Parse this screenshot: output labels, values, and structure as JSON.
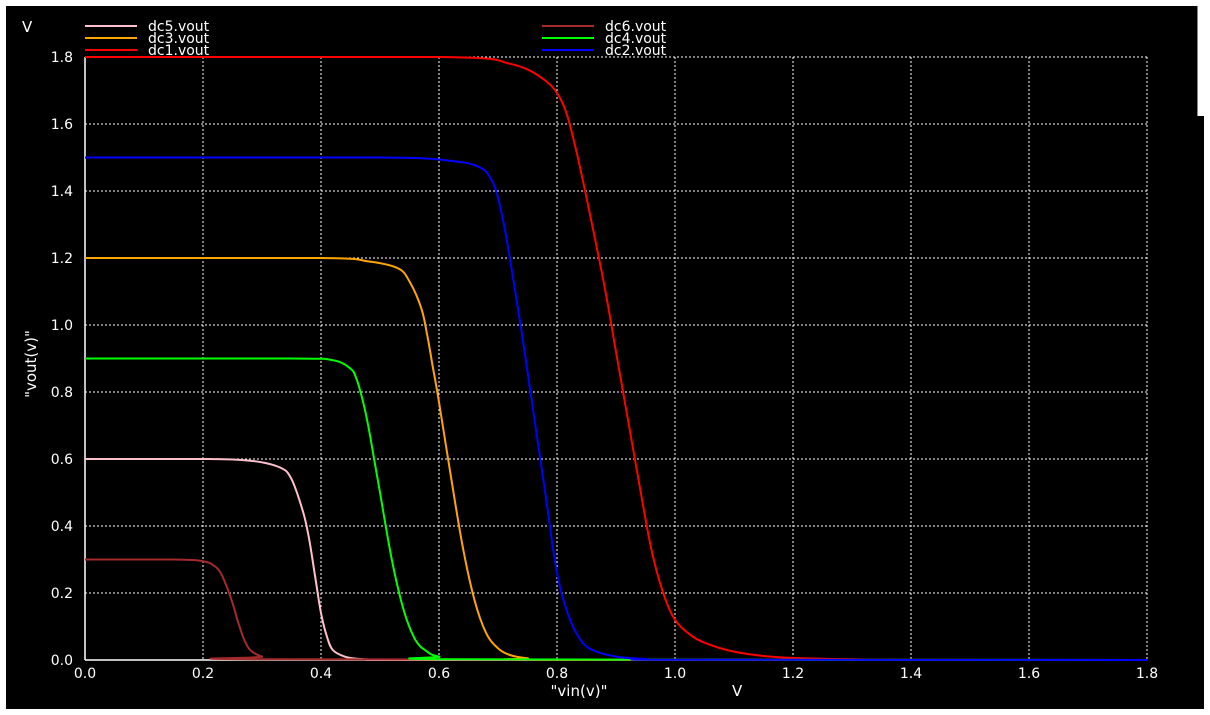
{
  "chart_data": {
    "type": "line",
    "title": "",
    "xlabel": "\"vin(v)\"",
    "xunit": "V",
    "ylabel": "\"vout(v)\"",
    "yunit": "V",
    "xlim": [
      0.0,
      1.8
    ],
    "ylim": [
      0.0,
      1.8
    ],
    "xticks": [
      "0.0",
      "0.2",
      "0.4",
      "0.6",
      "0.8",
      "1.0",
      "1.2",
      "1.4",
      "1.6",
      "1.8"
    ],
    "yticks": [
      "0.0",
      "0.2",
      "0.4",
      "0.6",
      "0.8",
      "1.0",
      "1.2",
      "1.4",
      "1.6",
      "1.8"
    ],
    "grid": true,
    "legend_position": "top",
    "background": "#000000",
    "axis_color": "#ffffff",
    "series": [
      {
        "name": "dc5.vout",
        "color": "#ffc0cb",
        "x": [
          0.0,
          0.2,
          0.28,
          0.33,
          0.35,
          0.37,
          0.38,
          0.39,
          0.4,
          0.41,
          0.42,
          0.44,
          0.46,
          0.5,
          0.6,
          1.8
        ],
        "y": [
          0.6,
          0.6,
          0.595,
          0.575,
          0.54,
          0.44,
          0.36,
          0.25,
          0.14,
          0.07,
          0.03,
          0.01,
          0.004,
          0.001,
          0.0,
          0.0
        ]
      },
      {
        "name": "dc3.vout",
        "color": "#ffa500",
        "x": [
          0.0,
          0.4,
          0.48,
          0.53,
          0.55,
          0.57,
          0.58,
          0.59,
          0.6,
          0.62,
          0.64,
          0.66,
          0.68,
          0.7,
          0.72,
          0.75,
          0.8,
          1.8
        ],
        "y": [
          1.2,
          1.2,
          1.19,
          1.17,
          1.13,
          1.05,
          0.97,
          0.87,
          0.77,
          0.55,
          0.34,
          0.18,
          0.08,
          0.035,
          0.015,
          0.005,
          0.001,
          0.0
        ]
      },
      {
        "name": "dc1.vout",
        "color": "#ff0000",
        "x": [
          0.0,
          0.6,
          0.72,
          0.78,
          0.81,
          0.83,
          0.85,
          0.88,
          0.9,
          0.92,
          0.94,
          0.96,
          0.98,
          1.0,
          1.03,
          1.06,
          1.1,
          1.15,
          1.2,
          1.3,
          1.4,
          1.8
        ],
        "y": [
          1.8,
          1.8,
          1.78,
          1.73,
          1.66,
          1.54,
          1.38,
          1.12,
          0.92,
          0.72,
          0.52,
          0.33,
          0.2,
          0.12,
          0.07,
          0.045,
          0.025,
          0.012,
          0.006,
          0.002,
          0.0,
          0.0
        ]
      },
      {
        "name": "dc6.vout",
        "color": "#a52a2a",
        "x": [
          0.0,
          0.15,
          0.2,
          0.22,
          0.23,
          0.24,
          0.25,
          0.26,
          0.27,
          0.28,
          0.3,
          0.33,
          1.8
        ],
        "y": [
          0.3,
          0.3,
          0.295,
          0.28,
          0.26,
          0.22,
          0.17,
          0.11,
          0.06,
          0.03,
          0.01,
          0.002,
          0.0
        ]
      },
      {
        "name": "dc4.vout",
        "color": "#00ff00",
        "x": [
          0.0,
          0.35,
          0.42,
          0.45,
          0.46,
          0.47,
          0.48,
          0.49,
          0.5,
          0.52,
          0.54,
          0.56,
          0.58,
          0.6,
          0.65,
          1.8
        ],
        "y": [
          0.9,
          0.9,
          0.895,
          0.87,
          0.84,
          0.78,
          0.7,
          0.6,
          0.5,
          0.3,
          0.15,
          0.06,
          0.025,
          0.01,
          0.002,
          0.0
        ]
      },
      {
        "name": "dc2.vout",
        "color": "#0000ff",
        "x": [
          0.0,
          0.5,
          0.62,
          0.67,
          0.69,
          0.7,
          0.71,
          0.72,
          0.74,
          0.76,
          0.78,
          0.8,
          0.82,
          0.84,
          0.86,
          0.9,
          0.95,
          1.0,
          1.8
        ],
        "y": [
          1.5,
          1.5,
          1.49,
          1.47,
          1.43,
          1.38,
          1.3,
          1.2,
          0.98,
          0.74,
          0.5,
          0.26,
          0.13,
          0.06,
          0.03,
          0.01,
          0.003,
          0.001,
          0.0
        ]
      }
    ],
    "legend_columns": [
      [
        "dc5.vout",
        "dc3.vout",
        "dc1.vout"
      ],
      [
        "dc6.vout",
        "dc4.vout",
        "dc2.vout"
      ]
    ]
  }
}
